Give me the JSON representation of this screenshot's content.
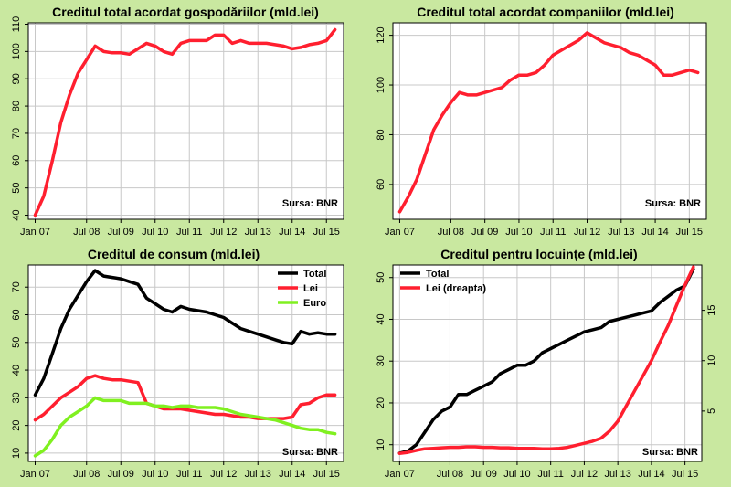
{
  "colors": {
    "background": "#c9e8a0",
    "plot": "#ffffff",
    "grid": "#c8c8c8",
    "red": "#ff1f2f",
    "black": "#000000",
    "green": "#80f020"
  },
  "chart_data": [
    {
      "type": "line",
      "title": "Creditul total acordat gospodăriilor (mld.lei)",
      "source": "Sursa: BNR",
      "xticks": [
        {
          "label": "Jan 07",
          "x": 2007.0
        },
        {
          "label": "Jul 08",
          "x": 2008.5
        },
        {
          "label": "Jul 09",
          "x": 2009.5
        },
        {
          "label": "Jul 10",
          "x": 2010.5
        },
        {
          "label": "Jul 11",
          "x": 2011.5
        },
        {
          "label": "Jul 12",
          "x": 2012.5
        },
        {
          "label": "Jul 13",
          "x": 2013.5
        },
        {
          "label": "Jul 14",
          "x": 2014.5
        },
        {
          "label": "Jul 15",
          "x": 2015.5
        }
      ],
      "xlim": [
        2006.8,
        2016.0
      ],
      "ylim": [
        38.5,
        110.5
      ],
      "yticks": [
        40,
        50,
        60,
        70,
        80,
        90,
        100,
        110
      ],
      "y_axis_side": "left",
      "grid": true,
      "series": [
        {
          "name": "",
          "color": "#ff1f2f",
          "x": [
            2007.0,
            2007.25,
            2007.5,
            2007.75,
            2008.0,
            2008.25,
            2008.5,
            2008.75,
            2009.0,
            2009.25,
            2009.5,
            2009.75,
            2010.0,
            2010.25,
            2010.5,
            2010.75,
            2011.0,
            2011.25,
            2011.5,
            2011.75,
            2012.0,
            2012.25,
            2012.5,
            2012.75,
            2013.0,
            2013.25,
            2013.5,
            2013.75,
            2014.0,
            2014.25,
            2014.5,
            2014.75,
            2015.0,
            2015.25,
            2015.5,
            2015.75
          ],
          "y": [
            40,
            47,
            60,
            74,
            84,
            92,
            97,
            102,
            100,
            99.5,
            99.5,
            99,
            101,
            103,
            102,
            100,
            99,
            103,
            104,
            104,
            104,
            106,
            106,
            103,
            104,
            103,
            103,
            103,
            102.5,
            102,
            101,
            101.5,
            102.5,
            103,
            104,
            108
          ]
        }
      ]
    },
    {
      "type": "line",
      "title": "Creditul total acordat companiilor (mld.lei)",
      "source": "Sursa: BNR",
      "xticks": [
        {
          "label": "Jan 07",
          "x": 2007.0
        },
        {
          "label": "Jul 08",
          "x": 2008.5
        },
        {
          "label": "Jul 09",
          "x": 2009.5
        },
        {
          "label": "Jul 10",
          "x": 2010.5
        },
        {
          "label": "Jul 11",
          "x": 2011.5
        },
        {
          "label": "Jul 12",
          "x": 2012.5
        },
        {
          "label": "Jul 13",
          "x": 2013.5
        },
        {
          "label": "Jul 14",
          "x": 2014.5
        },
        {
          "label": "Jul 15",
          "x": 2015.5
        }
      ],
      "xlim": [
        2006.8,
        2016.0
      ],
      "ylim": [
        46,
        125
      ],
      "yticks": [
        60,
        80,
        100,
        120
      ],
      "y_axis_side": "left",
      "grid": true,
      "series": [
        {
          "name": "",
          "color": "#ff1f2f",
          "x": [
            2007.0,
            2007.25,
            2007.5,
            2007.75,
            2008.0,
            2008.25,
            2008.5,
            2008.75,
            2009.0,
            2009.25,
            2009.5,
            2009.75,
            2010.0,
            2010.25,
            2010.5,
            2010.75,
            2011.0,
            2011.25,
            2011.5,
            2011.75,
            2012.0,
            2012.25,
            2012.5,
            2012.75,
            2013.0,
            2013.25,
            2013.5,
            2013.75,
            2014.0,
            2014.25,
            2014.5,
            2014.75,
            2015.0,
            2015.25,
            2015.5,
            2015.75
          ],
          "y": [
            49,
            55,
            62,
            72,
            82,
            88,
            93,
            97,
            96,
            96,
            97,
            98,
            99,
            102,
            104,
            104,
            105,
            108,
            112,
            114,
            116,
            118,
            121,
            119,
            117,
            116,
            115,
            113,
            112,
            110,
            108,
            104,
            104,
            105,
            106,
            105
          ]
        }
      ]
    },
    {
      "type": "line",
      "title": "Creditul de consum (mld.lei)",
      "source": "Sursa: BNR",
      "xticks": [
        {
          "label": "Jan 07",
          "x": 2007.0
        },
        {
          "label": "Jul 08",
          "x": 2008.5
        },
        {
          "label": "Jul 09",
          "x": 2009.5
        },
        {
          "label": "Jul 10",
          "x": 2010.5
        },
        {
          "label": "Jul 11",
          "x": 2011.5
        },
        {
          "label": "Jul 12",
          "x": 2012.5
        },
        {
          "label": "Jul 13",
          "x": 2013.5
        },
        {
          "label": "Jul 14",
          "x": 2014.5
        },
        {
          "label": "Jul 15",
          "x": 2015.5
        }
      ],
      "xlim": [
        2006.8,
        2016.0
      ],
      "ylim": [
        7,
        78
      ],
      "yticks": [
        10,
        20,
        30,
        40,
        50,
        60,
        70
      ],
      "y_axis_side": "left",
      "grid": true,
      "legend": "top-right",
      "series": [
        {
          "name": "Total",
          "color": "#000000",
          "x": [
            2007.0,
            2007.25,
            2007.5,
            2007.75,
            2008.0,
            2008.25,
            2008.5,
            2008.75,
            2009.0,
            2009.25,
            2009.5,
            2009.75,
            2010.0,
            2010.25,
            2010.5,
            2010.75,
            2011.0,
            2011.25,
            2011.5,
            2011.75,
            2012.0,
            2012.25,
            2012.5,
            2012.75,
            2013.0,
            2013.25,
            2013.5,
            2013.75,
            2014.0,
            2014.25,
            2014.5,
            2014.75,
            2015.0,
            2015.25,
            2015.5,
            2015.75
          ],
          "y": [
            31,
            37,
            46,
            55,
            62,
            67,
            72,
            76,
            74,
            73.5,
            73,
            72,
            71,
            66,
            64,
            62,
            61,
            63,
            62,
            61.5,
            61,
            60,
            59,
            57,
            55,
            54,
            53,
            52,
            51,
            50,
            49.5,
            54,
            53,
            53.5,
            53,
            53
          ]
        },
        {
          "name": "Lei",
          "color": "#ff1f2f",
          "x": [
            2007.0,
            2007.25,
            2007.5,
            2007.75,
            2008.0,
            2008.25,
            2008.5,
            2008.75,
            2009.0,
            2009.25,
            2009.5,
            2009.75,
            2010.0,
            2010.25,
            2010.5,
            2010.75,
            2011.0,
            2011.25,
            2011.5,
            2011.75,
            2012.0,
            2012.25,
            2012.5,
            2012.75,
            2013.0,
            2013.25,
            2013.5,
            2013.75,
            2014.0,
            2014.25,
            2014.5,
            2014.75,
            2015.0,
            2015.25,
            2015.5,
            2015.75
          ],
          "y": [
            22,
            24,
            27,
            30,
            32,
            34,
            37,
            38,
            37,
            36.5,
            36.5,
            36,
            35.5,
            28,
            27,
            26,
            26,
            26,
            25.5,
            25,
            24.5,
            24,
            24,
            23.5,
            23,
            23,
            22.5,
            22.5,
            22.5,
            22.5,
            23,
            27.5,
            28,
            30,
            31,
            31
          ]
        },
        {
          "name": "Euro",
          "color": "#80f020",
          "x": [
            2007.0,
            2007.25,
            2007.5,
            2007.75,
            2008.0,
            2008.25,
            2008.5,
            2008.75,
            2009.0,
            2009.25,
            2009.5,
            2009.75,
            2010.0,
            2010.25,
            2010.5,
            2010.75,
            2011.0,
            2011.25,
            2011.5,
            2011.75,
            2012.0,
            2012.25,
            2012.5,
            2012.75,
            2013.0,
            2013.25,
            2013.5,
            2013.75,
            2014.0,
            2014.25,
            2014.5,
            2014.75,
            2015.0,
            2015.25,
            2015.5,
            2015.75
          ],
          "y": [
            9,
            11,
            15,
            20,
            23,
            25,
            27,
            30,
            29,
            29,
            29,
            28,
            28,
            28,
            27,
            27,
            26.5,
            27,
            27,
            26.5,
            26.5,
            26.5,
            26,
            25,
            24,
            23.5,
            23,
            22.5,
            22,
            21,
            20,
            19,
            18.5,
            18.5,
            17.5,
            17
          ]
        }
      ]
    },
    {
      "type": "line",
      "title": "Creditul pentru locuințe (mld.lei)",
      "source": "Sursa: BNR",
      "xticks": [
        {
          "label": "Jan 07",
          "x": 2007.0
        },
        {
          "label": "Jul 08",
          "x": 2008.5
        },
        {
          "label": "Jul 09",
          "x": 2009.5
        },
        {
          "label": "Jul 10",
          "x": 2010.5
        },
        {
          "label": "Jul 11",
          "x": 2011.5
        },
        {
          "label": "Jul 12",
          "x": 2012.5
        },
        {
          "label": "Jul 13",
          "x": 2013.5
        },
        {
          "label": "Jul 14",
          "x": 2014.5
        },
        {
          "label": "Jul 15",
          "x": 2015.5
        }
      ],
      "xlim": [
        2006.8,
        2016.0
      ],
      "ylim": [
        6,
        53
      ],
      "yticks": [
        10,
        20,
        30,
        40,
        50
      ],
      "y_axis_side": "left",
      "y2lim": [
        0,
        19.5
      ],
      "y2ticks": [
        5,
        10,
        15
      ],
      "grid": true,
      "legend": "top-left",
      "series": [
        {
          "name": "Total",
          "color": "#000000",
          "axis": "left",
          "x": [
            2007.0,
            2007.25,
            2007.5,
            2007.75,
            2008.0,
            2008.25,
            2008.5,
            2008.75,
            2009.0,
            2009.25,
            2009.5,
            2009.75,
            2010.0,
            2010.25,
            2010.5,
            2010.75,
            2011.0,
            2011.25,
            2011.5,
            2011.75,
            2012.0,
            2012.25,
            2012.5,
            2012.75,
            2013.0,
            2013.25,
            2013.5,
            2013.75,
            2014.0,
            2014.25,
            2014.5,
            2014.75,
            2015.0,
            2015.25,
            2015.5,
            2015.75
          ],
          "y": [
            8,
            8.5,
            10,
            13,
            16,
            18,
            19,
            22,
            22,
            23,
            24,
            25,
            27,
            28,
            29,
            29,
            30,
            32,
            33,
            34,
            35,
            36,
            37,
            37.5,
            38,
            39.5,
            40,
            40.5,
            41,
            41.5,
            42,
            44,
            45.5,
            47,
            48,
            52
          ]
        },
        {
          "name": "Lei (dreapta)",
          "color": "#ff1f2f",
          "axis": "right",
          "x": [
            2007.0,
            2007.25,
            2007.5,
            2007.75,
            2008.0,
            2008.25,
            2008.5,
            2008.75,
            2009.0,
            2009.25,
            2009.5,
            2009.75,
            2010.0,
            2010.25,
            2010.5,
            2010.75,
            2011.0,
            2011.25,
            2011.5,
            2011.75,
            2012.0,
            2012.25,
            2012.5,
            2012.75,
            2013.0,
            2013.25,
            2013.5,
            2013.75,
            2014.0,
            2014.25,
            2014.5,
            2014.75,
            2015.0,
            2015.25,
            2015.5,
            2015.75
          ],
          "y": [
            0.8,
            0.9,
            1.1,
            1.25,
            1.3,
            1.35,
            1.4,
            1.4,
            1.45,
            1.45,
            1.4,
            1.4,
            1.35,
            1.35,
            1.3,
            1.3,
            1.3,
            1.25,
            1.25,
            1.3,
            1.4,
            1.6,
            1.8,
            2.0,
            2.3,
            3.0,
            4.0,
            5.5,
            7.0,
            8.5,
            10.0,
            11.8,
            13.5,
            15.5,
            17.5,
            19.3
          ]
        }
      ]
    }
  ]
}
